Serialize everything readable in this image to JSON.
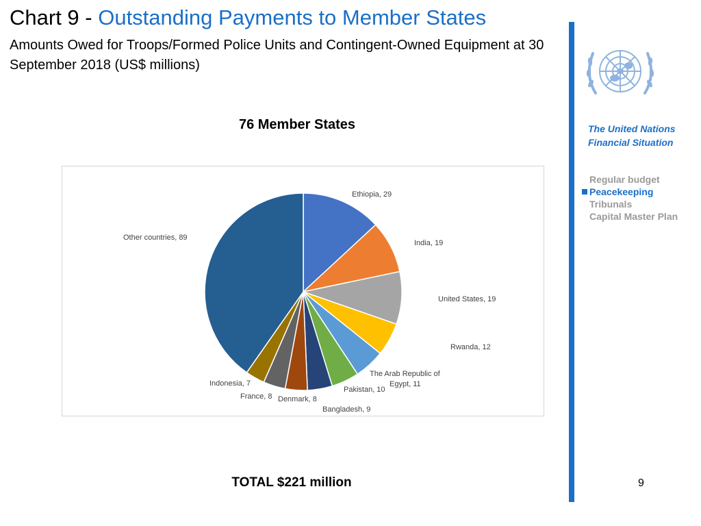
{
  "header": {
    "chart_prefix": "Chart 9 - ",
    "chart_title": "Outstanding Payments to Member States",
    "subtitle": "Amounts Owed for Troops/Formed Police Units and Contingent-Owned Equipment at 30 September 2018 (US$ millions)"
  },
  "chart_heading": "76 Member States",
  "total": "TOTAL  $221 million",
  "sidebar": {
    "title_line1": "The United Nations",
    "title_line2": "Financial Situation",
    "nav": [
      "Regular budget",
      "Peacekeeping",
      "Tribunals",
      "Capital Master Plan"
    ],
    "active_index": 1
  },
  "page_number": "9",
  "chart_data": {
    "type": "pie",
    "title": "76 Member States",
    "unit": "US$ millions",
    "start": "12 o'clock, clockwise",
    "slices": [
      {
        "label": "Ethiopia, 29",
        "name": "Ethiopia",
        "value": 29,
        "color": "#4472c4"
      },
      {
        "label": "India, 19",
        "name": "India",
        "value": 19,
        "color": "#ed7d31"
      },
      {
        "label": "United States, 19",
        "name": "United States",
        "value": 19,
        "color": "#a5a5a5"
      },
      {
        "label": "Rwanda, 12",
        "name": "Rwanda",
        "value": 12,
        "color": "#ffc000"
      },
      {
        "label": "The Arab Republic of Egypt, 11",
        "label_lines": [
          "The Arab Republic of",
          "Egypt, 11"
        ],
        "name": "The Arab Republic of Egypt",
        "value": 11,
        "color": "#5b9bd5"
      },
      {
        "label": "Pakistan, 10",
        "name": "Pakistan",
        "value": 10,
        "color": "#70ad47"
      },
      {
        "label": "Bangladesh, 9",
        "name": "Bangladesh",
        "value": 9,
        "color": "#264478"
      },
      {
        "label": "Denmark, 8",
        "name": "Denmark",
        "value": 8,
        "color": "#9e480e"
      },
      {
        "label": "France, 8",
        "name": "France",
        "value": 8,
        "color": "#636363"
      },
      {
        "label": "Indonesia, 7",
        "name": "Indonesia",
        "value": 7,
        "color": "#997300"
      },
      {
        "label": "Other countries, 89",
        "name": "Other countries",
        "value": 89,
        "color": "#255e91"
      }
    ]
  }
}
